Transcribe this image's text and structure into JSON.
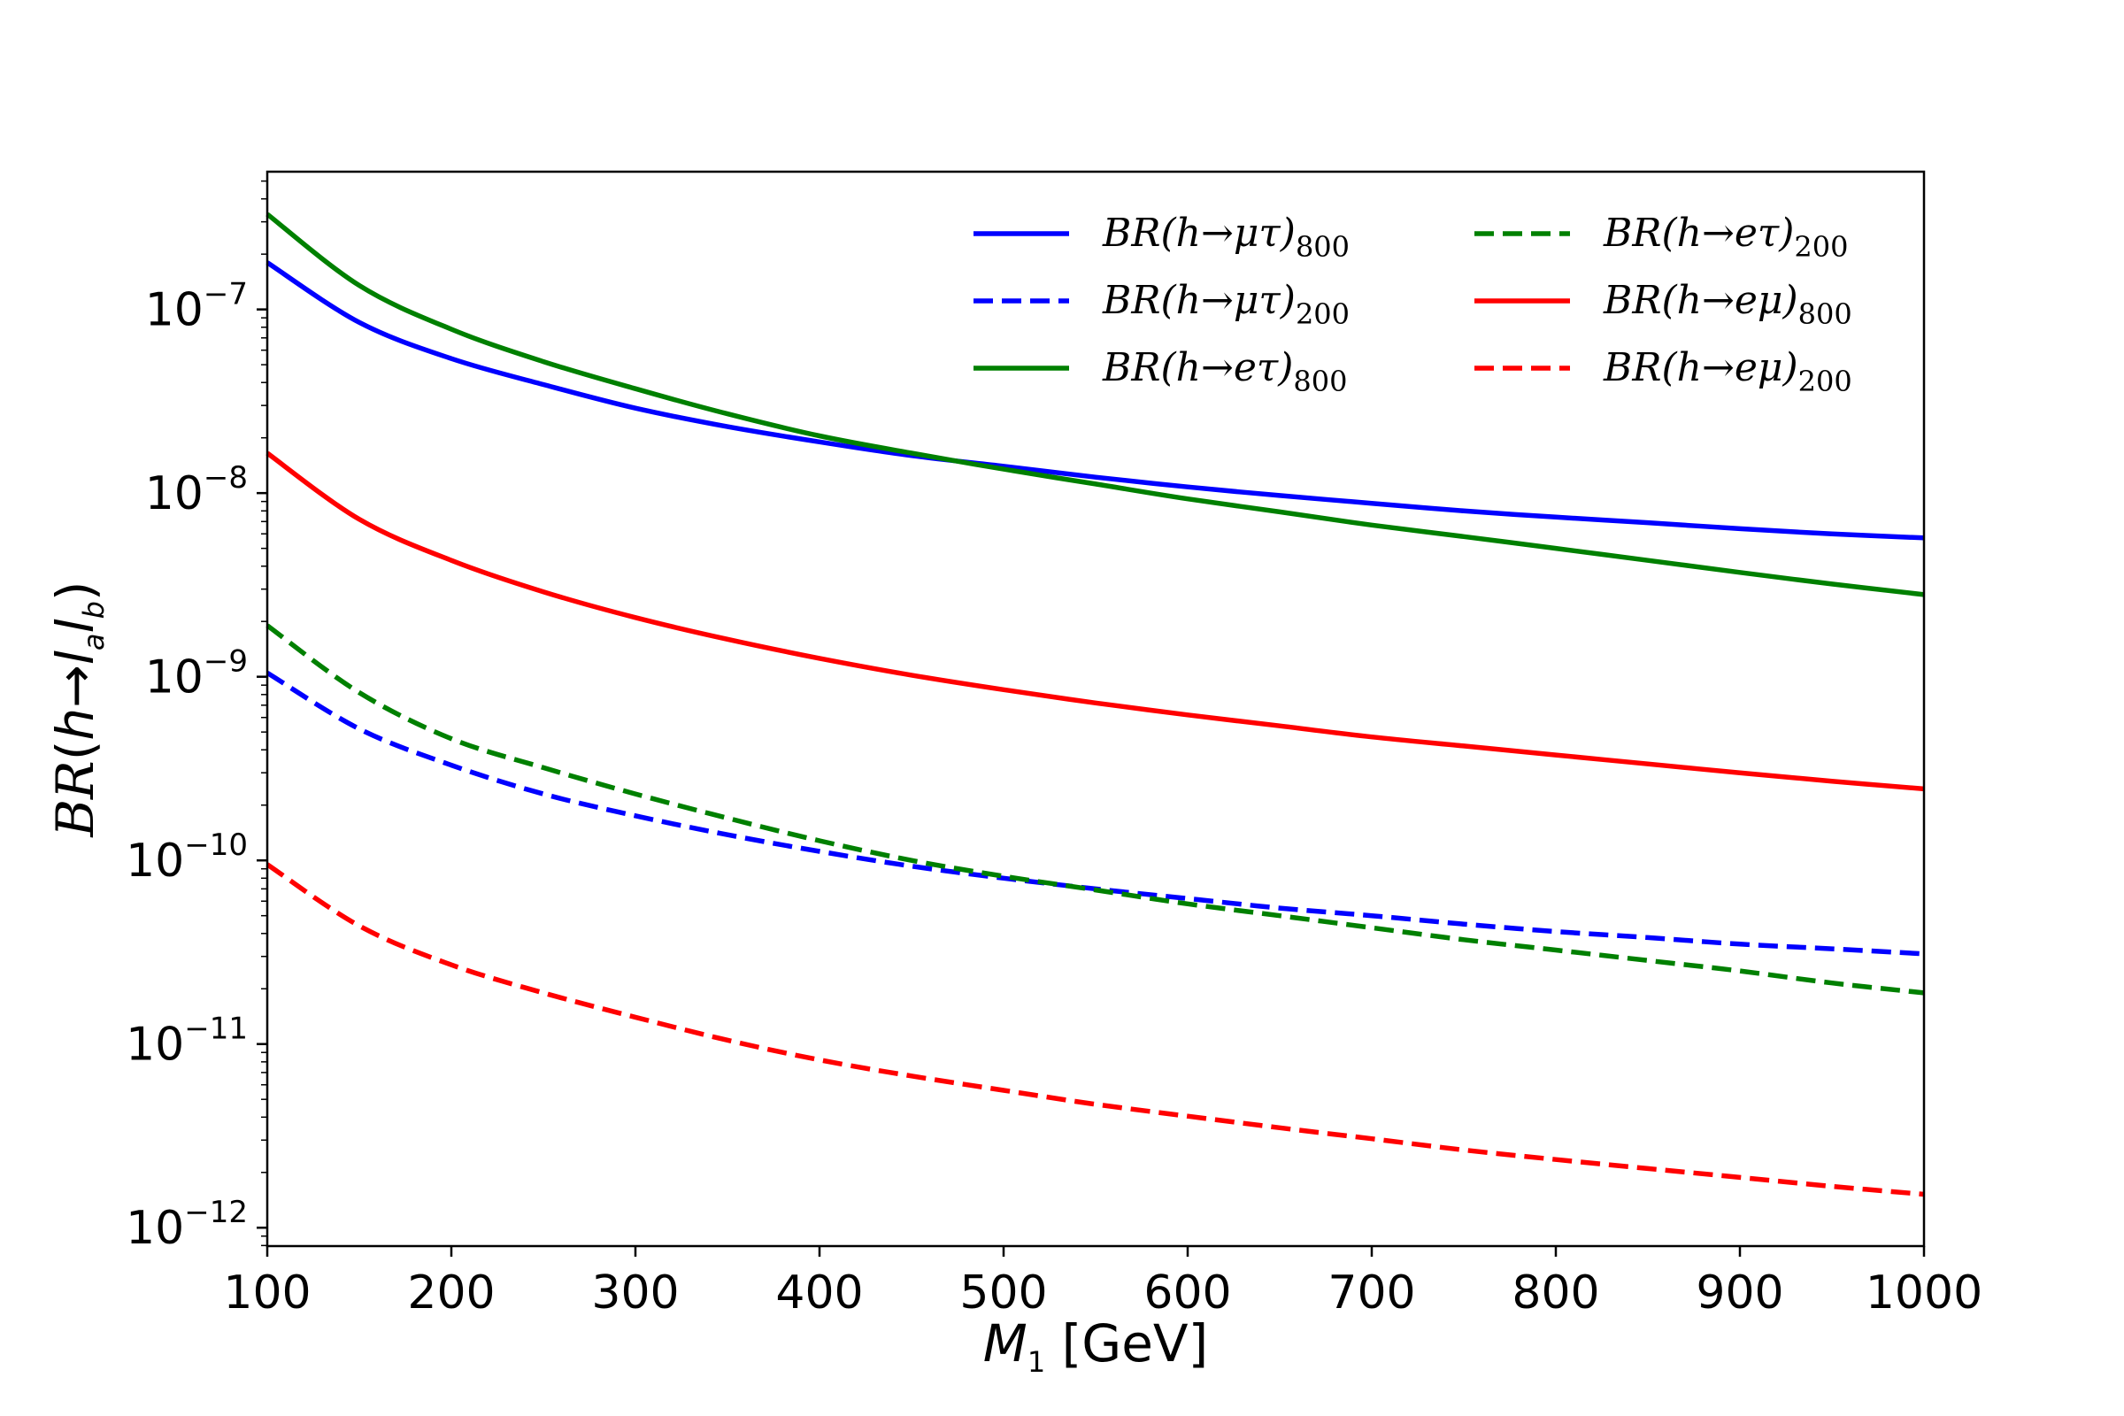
{
  "chart_data": {
    "type": "line",
    "xlabel": "M1 [GeV]",
    "ylabel": "BR(h→lalb)",
    "xlim": [
      100,
      1000
    ],
    "ylim_log10": [
      -12.1,
      -6.25
    ],
    "yscale": "log",
    "grid": false,
    "legend_placement": "top-right",
    "x_ticks": [
      100,
      200,
      300,
      400,
      500,
      600,
      700,
      800,
      900,
      1000
    ],
    "y_ticks": [
      {
        "exp": -7,
        "label": "10",
        "sup": "−7"
      },
      {
        "exp": -8,
        "label": "10",
        "sup": "−8"
      },
      {
        "exp": -9,
        "label": "10",
        "sup": "−9"
      },
      {
        "exp": -10,
        "label": "10",
        "sup": "−10"
      },
      {
        "exp": -11,
        "label": "10",
        "sup": "−11"
      },
      {
        "exp": -12,
        "label": "10",
        "sup": "−12"
      }
    ],
    "x": [
      100,
      150,
      200,
      250,
      300,
      350,
      400,
      450,
      500,
      550,
      600,
      650,
      700,
      750,
      800,
      850,
      900,
      950,
      1000
    ],
    "series": [
      {
        "name": "BR(h→μτ)800",
        "label_main": "BR(h→μτ)",
        "label_sub": "800",
        "color": "#0000ff",
        "dash": "solid",
        "values": [
          1.8e-07,
          8.5e-08,
          5.4e-08,
          3.9e-08,
          2.9e-08,
          2.3e-08,
          1.9e-08,
          1.6e-08,
          1.4e-08,
          1.22e-08,
          1.08e-08,
          9.7e-09,
          8.8e-09,
          8e-09,
          7.4e-09,
          6.9e-09,
          6.4e-09,
          6e-09,
          5.7e-09
        ]
      },
      {
        "name": "BR(h→μτ)200",
        "label_main": "BR(h→μτ)",
        "label_sub": "200",
        "color": "#0000ff",
        "dash": "dashed",
        "values": [
          1.05e-09,
          5.2e-10,
          3.3e-10,
          2.3e-10,
          1.75e-10,
          1.38e-10,
          1.12e-10,
          9.3e-11,
          8e-11,
          7e-11,
          6.2e-11,
          5.5e-11,
          5e-11,
          4.5e-11,
          4.1e-11,
          3.8e-11,
          3.5e-11,
          3.3e-11,
          3.1e-11
        ]
      },
      {
        "name": "BR(h→eτ)800",
        "label_main": "BR(h→eτ)",
        "label_sub": "800",
        "color": "#008000",
        "dash": "solid",
        "values": [
          3.3e-07,
          1.35e-07,
          7.8e-08,
          5.2e-08,
          3.7e-08,
          2.7e-08,
          2.05e-08,
          1.65e-08,
          1.35e-08,
          1.12e-08,
          9.3e-09,
          7.9e-09,
          6.7e-09,
          5.8e-09,
          5e-09,
          4.3e-09,
          3.7e-09,
          3.2e-09,
          2.8e-09
        ]
      },
      {
        "name": "BR(h→eτ)200",
        "label_main": "BR(h→eτ)",
        "label_sub": "200",
        "color": "#008000",
        "dash": "dashed",
        "values": [
          1.9e-09,
          8.2e-10,
          4.6e-10,
          3.2e-10,
          2.3e-10,
          1.7e-10,
          1.28e-10,
          1e-10,
          8.2e-11,
          6.9e-11,
          5.8e-11,
          5e-11,
          4.3e-11,
          3.7e-11,
          3.25e-11,
          2.85e-11,
          2.5e-11,
          2.15e-11,
          1.9e-11
        ]
      },
      {
        "name": "BR(h→eμ)800",
        "label_main": "BR(h→eμ)",
        "label_sub": "800",
        "color": "#ff0000",
        "dash": "solid",
        "values": [
          1.65e-08,
          7.2e-09,
          4.3e-09,
          2.9e-09,
          2.1e-09,
          1.6e-09,
          1.26e-09,
          1.02e-09,
          8.5e-10,
          7.2e-10,
          6.2e-10,
          5.4e-10,
          4.7e-10,
          4.2e-10,
          3.75e-10,
          3.35e-10,
          3e-10,
          2.7e-10,
          2.45e-10
        ]
      },
      {
        "name": "BR(h→eμ)200",
        "label_main": "BR(h→eμ)",
        "label_sub": "200",
        "color": "#ff0000",
        "dash": "dashed",
        "values": [
          9.5e-11,
          4.4e-11,
          2.7e-11,
          1.9e-11,
          1.4e-11,
          1.05e-11,
          8.2e-12,
          6.7e-12,
          5.6e-12,
          4.7e-12,
          4.05e-12,
          3.5e-12,
          3.05e-12,
          2.65e-12,
          2.35e-12,
          2.1e-12,
          1.88e-12,
          1.68e-12,
          1.52e-12
        ]
      }
    ]
  }
}
